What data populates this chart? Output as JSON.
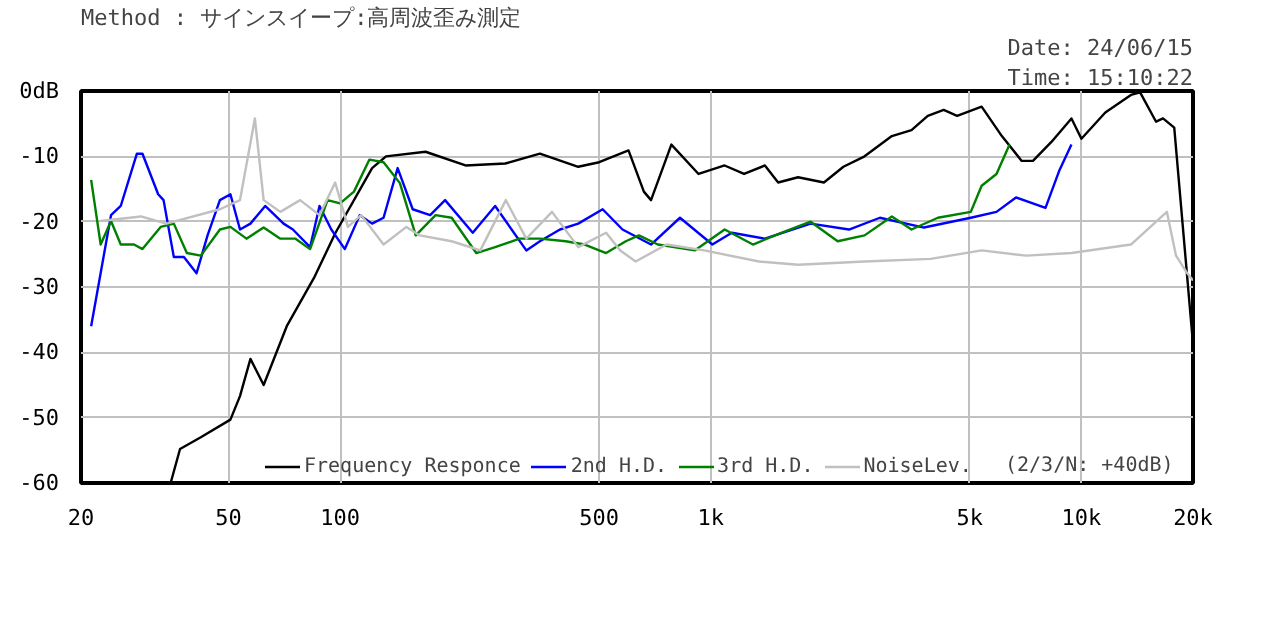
{
  "chart_data": {
    "type": "line",
    "subtitle": "Method : サインスイープ:高周波歪み測定",
    "annotations": [
      "Date: 24/06/15",
      "Time: 15:10:22",
      "(2/3/N: +40dB)"
    ],
    "log": "x",
    "grid": true,
    "legend": "bottom",
    "marker": "none",
    "line_style": "solid",
    "xlim": [
      20,
      20000
    ],
    "xticks": [
      20,
      50,
      100,
      500,
      {
        "value": 1000,
        "label": "1k"
      },
      {
        "value": 5000,
        "label": "5k"
      },
      {
        "value": 10000,
        "label": "10k"
      },
      {
        "value": 20000,
        "label": "20k"
      }
    ],
    "ylim": [
      -60,
      0
    ],
    "yticks": [
      {
        "value": 0,
        "label": "0dB"
      },
      -10,
      -20,
      -30,
      -40,
      -50,
      -60
    ],
    "series": [
      {
        "name": "Frequency Responce",
        "color": "#000000",
        "x": [
          34.9,
          37.0,
          42.1,
          50.6,
          53.7,
          57.3,
          62.2,
          71.8,
          85.4,
          97.2,
          122,
          133,
          170,
          218,
          279,
          346,
          439,
          500,
          600,
          660,
          690,
          783,
          927,
          1090,
          1230,
          1400,
          1520,
          1720,
          2020,
          2280,
          2600,
          3080,
          3480,
          3850,
          4250,
          4620,
          5380,
          6100,
          6900,
          7400,
          8300,
          9400,
          10000,
          11600,
          13600,
          14400,
          15900,
          16600,
          17800,
          20000
        ],
        "values": [
          -60,
          -54.8,
          -53,
          -50.3,
          -46.7,
          -41,
          -45,
          -36,
          -28.4,
          -21.7,
          -11.8,
          -10,
          -9.3,
          -11.4,
          -11.1,
          -9.6,
          -11.6,
          -10.9,
          -9.1,
          -15.4,
          -16.7,
          -8.2,
          -12.7,
          -11.4,
          -12.7,
          -11.4,
          -14,
          -13.2,
          -14,
          -11.6,
          -10,
          -6.9,
          -6,
          -3.8,
          -2.9,
          -3.8,
          -2.4,
          -6.9,
          -10.7,
          -10.7,
          -7.8,
          -4.2,
          -7.3,
          -3.3,
          -0.6,
          -0.2,
          -4.7,
          -4.2,
          -5.6,
          -38.7
        ]
      },
      {
        "name": "2nd H.D.",
        "color": "#0000ff",
        "x": [
          21.3,
          24.1,
          25.6,
          28.3,
          29.3,
          32.3,
          33.4,
          35.6,
          37.9,
          41,
          43.9,
          47.4,
          50.6,
          53.7,
          57.3,
          62.8,
          70.4,
          74.6,
          83,
          88,
          94.7,
          103,
          113,
          122,
          131,
          143,
          157,
          175,
          192,
          228,
          262,
          318,
          346,
          392,
          439,
          511,
          578,
          690,
          826,
          1010,
          1140,
          1400,
          1860,
          2360,
          2860,
          3760,
          5030,
          5900,
          6660,
          8000,
          8700,
          9400
        ],
        "values": [
          -36,
          -19,
          -17.6,
          -9.6,
          -9.6,
          -15.8,
          -16.7,
          -25.4,
          -25.4,
          -27.9,
          -22.1,
          -16.7,
          -15.8,
          -21.2,
          -20.3,
          -17.6,
          -20.3,
          -21.2,
          -23.9,
          -17.6,
          -21.2,
          -24.2,
          -19,
          -20.3,
          -19.4,
          -11.8,
          -18.1,
          -19,
          -16.7,
          -21.7,
          -17.6,
          -24.4,
          -23,
          -21.2,
          -20.3,
          -18.1,
          -21.2,
          -23.5,
          -19.4,
          -23.5,
          -21.7,
          -22.6,
          -20.3,
          -21.2,
          -19.4,
          -20.9,
          -19.4,
          -18.5,
          -16.3,
          -17.9,
          -12.3,
          -8.2
        ]
      },
      {
        "name": "3rd H.D.",
        "color": "#008000",
        "x": [
          21.3,
          22.6,
          24.1,
          25.6,
          27.8,
          29.3,
          32.8,
          35.6,
          38.6,
          42.1,
          47.4,
          50.6,
          55.9,
          62.2,
          69,
          75.8,
          83,
          92.5,
          100,
          109,
          120,
          131,
          145,
          160,
          181,
          200,
          233,
          262,
          305,
          346,
          406,
          457,
          522,
          590,
          640,
          720,
          905,
          1090,
          1300,
          1550,
          1860,
          2200,
          2600,
          3080,
          3480,
          4100,
          5030,
          5380,
          5900,
          6400
        ],
        "values": [
          -13.6,
          -23.5,
          -19.9,
          -23.5,
          -23.5,
          -24.2,
          -20.8,
          -20.3,
          -24.8,
          -25.2,
          -21.2,
          -20.8,
          -22.6,
          -20.9,
          -22.6,
          -22.6,
          -24.2,
          -16.7,
          -17.2,
          -15.4,
          -10.5,
          -10.9,
          -14.1,
          -22.1,
          -19,
          -19.4,
          -24.8,
          -23.9,
          -22.6,
          -22.6,
          -23,
          -23.5,
          -24.8,
          -23,
          -22.1,
          -23.5,
          -24.4,
          -21.2,
          -23.5,
          -21.7,
          -20,
          -23,
          -22.1,
          -19.2,
          -21.2,
          -19.4,
          -18.5,
          -14.5,
          -12.7,
          -8.2
        ]
      },
      {
        "name": "NoiseLev.",
        "color": "#c0c0c0",
        "x": [
          22.6,
          29,
          34,
          47.4,
          53.7,
          58.9,
          62.2,
          69,
          78,
          88,
          97,
          105,
          114,
          131,
          151,
          164,
          200,
          239,
          280,
          318,
          373,
          439,
          522,
          570,
          627,
          760,
          960,
          1350,
          1720,
          2600,
          3920,
          5380,
          7100,
          9400,
          13600,
          17000,
          18000,
          19300,
          20000
        ],
        "values": [
          -19.9,
          -19.2,
          -20.3,
          -18.1,
          -16.7,
          -4.2,
          -16.7,
          -18.5,
          -16.7,
          -19,
          -14,
          -20.8,
          -19,
          -23.5,
          -20.8,
          -22.1,
          -23,
          -24.4,
          -16.7,
          -22.6,
          -18.5,
          -23.9,
          -21.7,
          -24.4,
          -26.1,
          -23.5,
          -24.4,
          -26.1,
          -26.6,
          -26.1,
          -25.7,
          -24.4,
          -25.2,
          -24.8,
          -23.5,
          -18.5,
          -25.2,
          -27.9,
          -29
        ]
      }
    ]
  }
}
